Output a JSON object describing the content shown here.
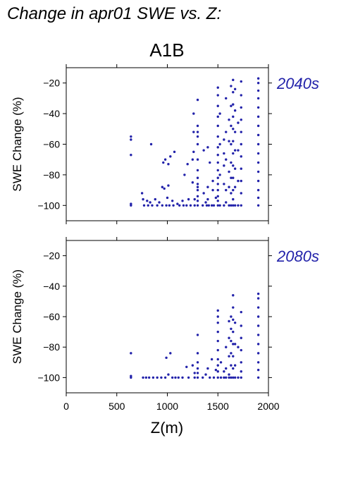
{
  "page_title": "Change in apr01 SWE vs. Z:",
  "chart_data": {
    "type": "scatter",
    "title": "A1B",
    "xlabel": "Z(m)",
    "ylabel": "SWE Change (%)",
    "xlim": [
      0,
      2000
    ],
    "ylim": [
      -110,
      -10
    ],
    "x_ticks": [
      0,
      500,
      1000,
      1500,
      2000
    ],
    "y_ticks": [
      -100,
      -80,
      -60,
      -40,
      -20
    ],
    "x_tick_labels": [
      "0",
      "500",
      "1000",
      "1500",
      "2000"
    ],
    "y_tick_labels": [
      "−100",
      "−80",
      "−60",
      "−40",
      "−20"
    ],
    "marker_color": "#2222aa",
    "panels": [
      {
        "label": "2040s",
        "points": [
          [
            640,
            -55
          ],
          [
            640,
            -57
          ],
          [
            640,
            -67
          ],
          [
            640,
            -99
          ],
          [
            640,
            -100
          ],
          [
            750,
            -92
          ],
          [
            760,
            -96
          ],
          [
            770,
            -100
          ],
          [
            800,
            -97
          ],
          [
            810,
            -100
          ],
          [
            830,
            -98
          ],
          [
            840,
            -60
          ],
          [
            850,
            -100
          ],
          [
            880,
            -96
          ],
          [
            900,
            -100
          ],
          [
            920,
            -98
          ],
          [
            950,
            -88
          ],
          [
            950,
            -100
          ],
          [
            960,
            -72
          ],
          [
            970,
            -89
          ],
          [
            980,
            -70
          ],
          [
            990,
            -100
          ],
          [
            1000,
            -95
          ],
          [
            1010,
            -87
          ],
          [
            1010,
            -73
          ],
          [
            1020,
            -100
          ],
          [
            1030,
            -68
          ],
          [
            1050,
            -97
          ],
          [
            1060,
            -100
          ],
          [
            1070,
            -65
          ],
          [
            1100,
            -99
          ],
          [
            1120,
            -100
          ],
          [
            1150,
            -97
          ],
          [
            1160,
            -100
          ],
          [
            1170,
            -80
          ],
          [
            1190,
            -100
          ],
          [
            1200,
            -73
          ],
          [
            1210,
            -96
          ],
          [
            1230,
            -100
          ],
          [
            1250,
            -85
          ],
          [
            1250,
            -70
          ],
          [
            1260,
            -65
          ],
          [
            1260,
            -52
          ],
          [
            1260,
            -40
          ],
          [
            1270,
            -96
          ],
          [
            1270,
            -100
          ],
          [
            1300,
            -31
          ],
          [
            1300,
            -48
          ],
          [
            1300,
            -52
          ],
          [
            1300,
            -55
          ],
          [
            1300,
            -60
          ],
          [
            1300,
            -70
          ],
          [
            1300,
            -77
          ],
          [
            1300,
            -82
          ],
          [
            1300,
            -86
          ],
          [
            1300,
            -90
          ],
          [
            1300,
            -94
          ],
          [
            1300,
            -97
          ],
          [
            1300,
            -100
          ],
          [
            1300,
            -88
          ],
          [
            1350,
            -100
          ],
          [
            1360,
            -92
          ],
          [
            1360,
            -64
          ],
          [
            1380,
            -98
          ],
          [
            1390,
            -100
          ],
          [
            1400,
            -62
          ],
          [
            1400,
            -88
          ],
          [
            1400,
            -96
          ],
          [
            1410,
            -100
          ],
          [
            1420,
            -72
          ],
          [
            1440,
            -100
          ],
          [
            1450,
            -84
          ],
          [
            1450,
            -90
          ],
          [
            1460,
            -100
          ],
          [
            1480,
            -95
          ],
          [
            1500,
            -23
          ],
          [
            1500,
            -28
          ],
          [
            1500,
            -35
          ],
          [
            1500,
            -42
          ],
          [
            1500,
            -48
          ],
          [
            1500,
            -55
          ],
          [
            1500,
            -62
          ],
          [
            1500,
            -67
          ],
          [
            1500,
            -72
          ],
          [
            1500,
            -77
          ],
          [
            1500,
            -82
          ],
          [
            1500,
            -86
          ],
          [
            1500,
            -90
          ],
          [
            1500,
            -94
          ],
          [
            1500,
            -97
          ],
          [
            1500,
            -100
          ],
          [
            1520,
            -40
          ],
          [
            1520,
            -60
          ],
          [
            1520,
            -80
          ],
          [
            1520,
            -100
          ],
          [
            1560,
            -57
          ],
          [
            1560,
            -66
          ],
          [
            1560,
            -74
          ],
          [
            1560,
            -86
          ],
          [
            1560,
            -100
          ],
          [
            1580,
            -30
          ],
          [
            1580,
            -52
          ],
          [
            1580,
            -70
          ],
          [
            1580,
            -90
          ],
          [
            1580,
            -98
          ],
          [
            1610,
            -44
          ],
          [
            1610,
            -58
          ],
          [
            1610,
            -78
          ],
          [
            1610,
            -88
          ],
          [
            1610,
            -100
          ],
          [
            1630,
            -22
          ],
          [
            1630,
            -35
          ],
          [
            1630,
            -48
          ],
          [
            1630,
            -60
          ],
          [
            1630,
            -72
          ],
          [
            1630,
            -82
          ],
          [
            1630,
            -92
          ],
          [
            1630,
            -100
          ],
          [
            1650,
            -18
          ],
          [
            1650,
            -26
          ],
          [
            1650,
            -34
          ],
          [
            1650,
            -42
          ],
          [
            1650,
            -50
          ],
          [
            1650,
            -58
          ],
          [
            1650,
            -66
          ],
          [
            1650,
            -74
          ],
          [
            1650,
            -82
          ],
          [
            1650,
            -90
          ],
          [
            1650,
            -96
          ],
          [
            1650,
            -100
          ],
          [
            1670,
            -24
          ],
          [
            1670,
            -38
          ],
          [
            1670,
            -52
          ],
          [
            1670,
            -64
          ],
          [
            1670,
            -76
          ],
          [
            1670,
            -88
          ],
          [
            1670,
            -100
          ],
          [
            1700,
            -46
          ],
          [
            1700,
            -64
          ],
          [
            1700,
            -84
          ],
          [
            1700,
            -100
          ],
          [
            1730,
            -19
          ],
          [
            1730,
            -28
          ],
          [
            1730,
            -36
          ],
          [
            1730,
            -44
          ],
          [
            1730,
            -52
          ],
          [
            1730,
            -60
          ],
          [
            1730,
            -68
          ],
          [
            1730,
            -76
          ],
          [
            1730,
            -84
          ],
          [
            1730,
            -92
          ],
          [
            1730,
            -100
          ],
          [
            1900,
            -17
          ],
          [
            1900,
            -20
          ],
          [
            1900,
            -25
          ],
          [
            1900,
            -30
          ],
          [
            1900,
            -36
          ],
          [
            1900,
            -42
          ],
          [
            1900,
            -48
          ],
          [
            1900,
            -54
          ],
          [
            1900,
            -60
          ],
          [
            1900,
            -66
          ],
          [
            1900,
            -72
          ],
          [
            1900,
            -78
          ],
          [
            1900,
            -84
          ],
          [
            1900,
            -90
          ],
          [
            1900,
            -95
          ],
          [
            1900,
            -100
          ]
        ]
      },
      {
        "label": "2080s",
        "points": [
          [
            640,
            -84
          ],
          [
            640,
            -99
          ],
          [
            640,
            -100
          ],
          [
            760,
            -100
          ],
          [
            790,
            -100
          ],
          [
            820,
            -100
          ],
          [
            860,
            -100
          ],
          [
            900,
            -100
          ],
          [
            940,
            -100
          ],
          [
            980,
            -100
          ],
          [
            990,
            -87
          ],
          [
            1010,
            -98
          ],
          [
            1030,
            -84
          ],
          [
            1050,
            -100
          ],
          [
            1080,
            -100
          ],
          [
            1110,
            -100
          ],
          [
            1150,
            -100
          ],
          [
            1190,
            -93
          ],
          [
            1210,
            -100
          ],
          [
            1250,
            -92
          ],
          [
            1270,
            -97
          ],
          [
            1270,
            -100
          ],
          [
            1300,
            -72
          ],
          [
            1300,
            -84
          ],
          [
            1300,
            -90
          ],
          [
            1300,
            -94
          ],
          [
            1300,
            -97
          ],
          [
            1300,
            -100
          ],
          [
            1350,
            -100
          ],
          [
            1380,
            -98
          ],
          [
            1400,
            -94
          ],
          [
            1420,
            -100
          ],
          [
            1440,
            -88
          ],
          [
            1460,
            -100
          ],
          [
            1480,
            -95
          ],
          [
            1500,
            -56
          ],
          [
            1500,
            -60
          ],
          [
            1500,
            -64
          ],
          [
            1500,
            -70
          ],
          [
            1500,
            -76
          ],
          [
            1500,
            -82
          ],
          [
            1500,
            -88
          ],
          [
            1500,
            -92
          ],
          [
            1500,
            -96
          ],
          [
            1500,
            -100
          ],
          [
            1530,
            -90
          ],
          [
            1530,
            -100
          ],
          [
            1560,
            -96
          ],
          [
            1560,
            -100
          ],
          [
            1580,
            -80
          ],
          [
            1580,
            -94
          ],
          [
            1580,
            -100
          ],
          [
            1610,
            -63
          ],
          [
            1610,
            -74
          ],
          [
            1610,
            -86
          ],
          [
            1610,
            -98
          ],
          [
            1610,
            -100
          ],
          [
            1630,
            -60
          ],
          [
            1630,
            -68
          ],
          [
            1630,
            -76
          ],
          [
            1630,
            -84
          ],
          [
            1630,
            -92
          ],
          [
            1630,
            -100
          ],
          [
            1650,
            -46
          ],
          [
            1650,
            -54
          ],
          [
            1650,
            -62
          ],
          [
            1650,
            -70
          ],
          [
            1650,
            -78
          ],
          [
            1650,
            -86
          ],
          [
            1650,
            -94
          ],
          [
            1650,
            -100
          ],
          [
            1670,
            -64
          ],
          [
            1670,
            -78
          ],
          [
            1670,
            -92
          ],
          [
            1670,
            -100
          ],
          [
            1700,
            -80
          ],
          [
            1700,
            -100
          ],
          [
            1730,
            -57
          ],
          [
            1730,
            -66
          ],
          [
            1730,
            -74
          ],
          [
            1730,
            -82
          ],
          [
            1730,
            -90
          ],
          [
            1730,
            -96
          ],
          [
            1730,
            -100
          ],
          [
            1900,
            -45
          ],
          [
            1900,
            -48
          ],
          [
            1900,
            -54
          ],
          [
            1900,
            -60
          ],
          [
            1900,
            -66
          ],
          [
            1900,
            -72
          ],
          [
            1900,
            -78
          ],
          [
            1900,
            -84
          ],
          [
            1900,
            -90
          ],
          [
            1900,
            -95
          ],
          [
            1900,
            -100
          ]
        ]
      }
    ]
  }
}
